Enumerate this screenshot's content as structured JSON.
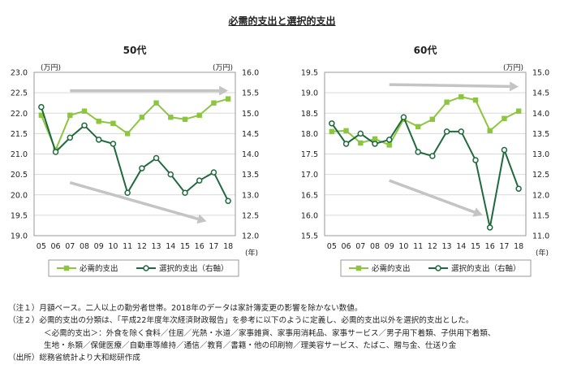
{
  "title": "必需的支出と選択的支出",
  "chart_data": [
    {
      "type": "line",
      "title": "50代",
      "categories": [
        "05",
        "06",
        "07",
        "08",
        "09",
        "10",
        "11",
        "12",
        "13",
        "14",
        "15",
        "16",
        "17",
        "18"
      ],
      "x_unit": "(年)",
      "y_left": {
        "unit": "(万円)",
        "min": 19.0,
        "max": 23.0,
        "step": 0.5
      },
      "y_right": {
        "unit": "(万円)",
        "min": 12.0,
        "max": 16.0,
        "step": 0.5
      },
      "series": [
        {
          "name": "必需的支出",
          "axis": "left",
          "color": "#8cc63f",
          "marker": "square",
          "values": [
            21.95,
            21.1,
            21.95,
            22.05,
            21.8,
            21.75,
            21.5,
            21.9,
            22.25,
            21.9,
            21.85,
            21.95,
            22.25,
            22.35
          ]
        },
        {
          "name": "選択的支出（右軸）",
          "axis": "right",
          "color": "#1e6a3c",
          "marker": "circle",
          "values": [
            15.15,
            14.05,
            14.4,
            14.7,
            14.35,
            14.25,
            13.05,
            13.65,
            13.9,
            13.5,
            13.05,
            13.35,
            13.55,
            12.85
          ]
        }
      ],
      "trend_arrows": [
        {
          "from": [
            2,
            22.55
          ],
          "to": [
            13,
            22.55
          ]
        },
        {
          "from": [
            2,
            20.3
          ],
          "to": [
            11.5,
            19.35
          ]
        }
      ]
    },
    {
      "type": "line",
      "title": "60代",
      "categories": [
        "05",
        "06",
        "07",
        "08",
        "09",
        "10",
        "11",
        "12",
        "13",
        "14",
        "15",
        "16",
        "17",
        "18"
      ],
      "x_unit": "(年)",
      "y_left": {
        "unit": "",
        "min": 15.5,
        "max": 19.5,
        "step": 0.5
      },
      "y_right": {
        "unit": "(万円)",
        "min": 11.0,
        "max": 15.0,
        "step": 0.5
      },
      "series": [
        {
          "name": "必需的支出",
          "axis": "left",
          "color": "#8cc63f",
          "marker": "square",
          "values": [
            18.05,
            18.07,
            17.77,
            17.87,
            17.72,
            18.35,
            18.17,
            18.35,
            18.77,
            18.9,
            18.82,
            18.07,
            18.37,
            18.55
          ]
        },
        {
          "name": "選択的支出（右軸）",
          "axis": "right",
          "color": "#1e6a3c",
          "marker": "circle",
          "values": [
            13.75,
            13.25,
            13.5,
            13.25,
            13.35,
            13.9,
            13.05,
            12.95,
            13.55,
            13.55,
            12.85,
            11.2,
            13.1,
            12.15
          ]
        }
      ],
      "trend_arrows": [
        {
          "from": [
            4,
            19.2
          ],
          "to": [
            13,
            19.15
          ]
        },
        {
          "from": [
            4,
            16.85
          ],
          "to": [
            10.5,
            16.0
          ]
        }
      ]
    }
  ],
  "legend": {
    "s1": "必需的支出",
    "s2": "選択的支出（右軸）"
  },
  "notes": [
    "（注１）月額ベース。二人以上の勤労者世帯。2018年のデータは家計簿変更の影響を除かない数値。",
    "（注２）必需的支出の分類は、「平成22年度年次経済財政報告」を参考に以下のように定義し、必需的支出以外を選択的支出とした。",
    "＜必需的支出＞：外食を除く食料／住居／光熱・水道／家事雑貨、家事用消耗品、家事サービス／男子用下着類、子供用下着類、",
    "生地・糸類／保健医療／自動車等維持／通信／教育／書籍・他の印刷物／理美容サービス、たばこ、贈与金、仕送り金"
  ],
  "source": "（出所）総務省統計より大和総研作成"
}
